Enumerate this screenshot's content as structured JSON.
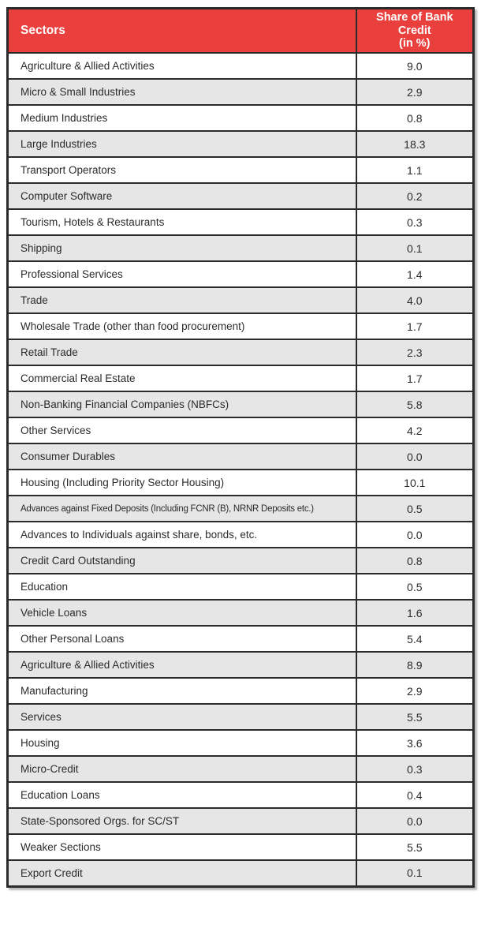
{
  "header": {
    "sectors_label": "Sectors",
    "share_label": "Share of Bank Credit\n(in %)"
  },
  "colors": {
    "header_bg": "#E9403E",
    "header_text": "#FFFFFF",
    "row_alt_bg": "#E6E6E6",
    "border": "#2B2B2B",
    "text": "#2B2B2B"
  },
  "chart_data": {
    "type": "table",
    "title": "",
    "columns": [
      "Sectors",
      "Share of Bank Credit (in %)"
    ],
    "rows": [
      {
        "sector": "Agriculture & Allied Activities",
        "share": "9.0"
      },
      {
        "sector": "Micro & Small Industries",
        "share": "2.9"
      },
      {
        "sector": "Medium Industries",
        "share": "0.8"
      },
      {
        "sector": "Large Industries",
        "share": "18.3"
      },
      {
        "sector": "Transport Operators",
        "share": "1.1"
      },
      {
        "sector": "Computer Software",
        "share": "0.2"
      },
      {
        "sector": "Tourism, Hotels & Restaurants",
        "share": "0.3"
      },
      {
        "sector": "Shipping",
        "share": "0.1"
      },
      {
        "sector": "Professional Services",
        "share": "1.4"
      },
      {
        "sector": "Trade",
        "share": "4.0"
      },
      {
        "sector": "Wholesale Trade (other than food procurement)",
        "share": "1.7"
      },
      {
        "sector": "Retail Trade",
        "share": "2.3"
      },
      {
        "sector": "Commercial Real Estate",
        "share": "1.7"
      },
      {
        "sector": "Non-Banking Financial Companies (NBFCs)",
        "share": "5.8"
      },
      {
        "sector": "Other Services",
        "share": "4.2"
      },
      {
        "sector": "Consumer Durables",
        "share": "0.0"
      },
      {
        "sector": "Housing (Including Priority Sector Housing)",
        "share": "10.1"
      },
      {
        "sector": "Advances against Fixed Deposits (Including FCNR (B), NRNR Deposits etc.)",
        "share": "0.5"
      },
      {
        "sector": "Advances to Individuals against share, bonds, etc.",
        "share": "0.0"
      },
      {
        "sector": "Credit Card Outstanding",
        "share": "0.8"
      },
      {
        "sector": "Education",
        "share": "0.5"
      },
      {
        "sector": "Vehicle Loans",
        "share": "1.6"
      },
      {
        "sector": "Other Personal Loans",
        "share": "5.4"
      },
      {
        "sector": "Agriculture & Allied Activities",
        "share": "8.9"
      },
      {
        "sector": "Manufacturing",
        "share": "2.9"
      },
      {
        "sector": "Services",
        "share": "5.5"
      },
      {
        "sector": "Housing",
        "share": "3.6"
      },
      {
        "sector": "Micro-Credit",
        "share": "0.3"
      },
      {
        "sector": "Education Loans",
        "share": "0.4"
      },
      {
        "sector": "State-Sponsored Orgs. for SC/ST",
        "share": "0.0"
      },
      {
        "sector": "Weaker Sections",
        "share": "5.5"
      },
      {
        "sector": "Export Credit",
        "share": "0.1"
      }
    ]
  }
}
